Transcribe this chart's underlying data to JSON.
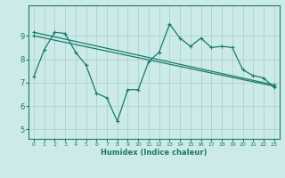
{
  "xlabel": "Humidex (Indice chaleur)",
  "bg_color": "#cceae8",
  "line_color": "#1a7a6e",
  "grid_color": "#aad4d0",
  "xlim": [
    -0.5,
    23.5
  ],
  "ylim": [
    4.6,
    10.3
  ],
  "yticks": [
    5,
    6,
    7,
    8,
    9
  ],
  "xticks": [
    0,
    1,
    2,
    3,
    4,
    5,
    6,
    7,
    8,
    9,
    10,
    11,
    12,
    13,
    14,
    15,
    16,
    17,
    18,
    19,
    20,
    21,
    22,
    23
  ],
  "series": [
    {
      "x": [
        0,
        1,
        2,
        3,
        4,
        5,
        6,
        7,
        8,
        9,
        10,
        11,
        12,
        13,
        14,
        15,
        16,
        17,
        18,
        19,
        20,
        21,
        22,
        23
      ],
      "y": [
        7.25,
        8.4,
        9.15,
        9.1,
        8.3,
        7.75,
        6.55,
        6.35,
        5.35,
        6.7,
        6.7,
        7.9,
        8.3,
        9.5,
        8.9,
        8.55,
        8.9,
        8.5,
        8.55,
        8.5,
        7.55,
        7.3,
        7.2,
        6.8
      ]
    },
    {
      "x": [
        0,
        23
      ],
      "y": [
        9.15,
        6.9
      ]
    },
    {
      "x": [
        0,
        23
      ],
      "y": [
        9.0,
        6.85
      ]
    }
  ]
}
